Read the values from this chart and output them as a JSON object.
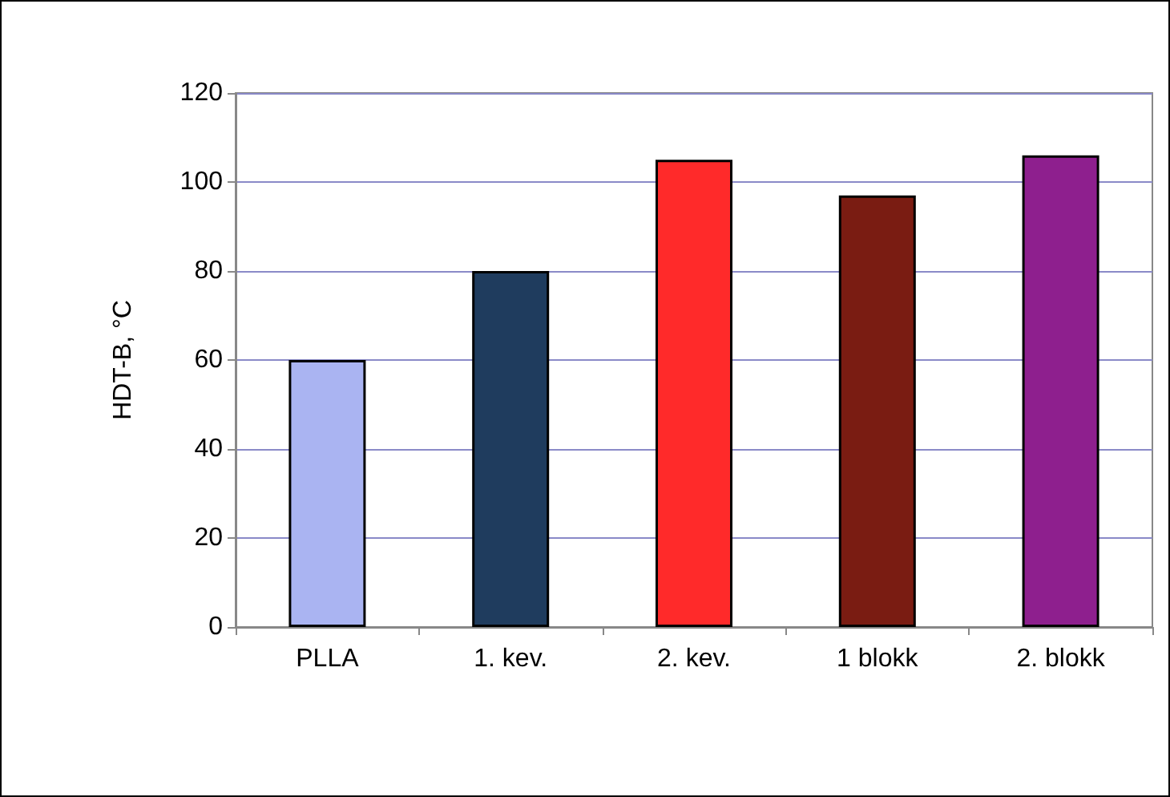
{
  "chart_data": {
    "type": "bar",
    "ylabel": "HDT-B, °C",
    "categories": [
      "PLLA",
      "1. kev.",
      "2. kev.",
      "1 blokk",
      "2. blokk"
    ],
    "values": [
      60,
      80,
      105,
      97,
      106
    ],
    "colors": [
      "#aab4f2",
      "#1f3c5e",
      "#ff2a2a",
      "#7a1c12",
      "#8e1f8e"
    ],
    "ylim": [
      0,
      120
    ],
    "yticks": [
      0,
      20,
      40,
      60,
      80,
      100,
      120
    ],
    "grid": "y"
  }
}
